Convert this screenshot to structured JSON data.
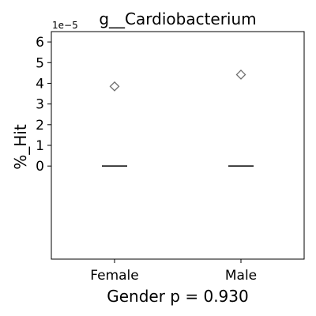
{
  "chart_data": {
    "type": "box",
    "title": "g__Cardiobacterium",
    "xlabel": "Gender p = 0.930",
    "ylabel": "%_Hit",
    "y_scale_label": "1e−5",
    "ylim": [
      -4.5e-05,
      6.5e-05
    ],
    "yticks": [
      0,
      1e-05,
      2e-05,
      3e-05,
      4e-05,
      5e-05,
      6e-05
    ],
    "ytick_labels": [
      "0",
      "1",
      "2",
      "3",
      "4",
      "5",
      "6"
    ],
    "categories": [
      "Female",
      "Male"
    ],
    "medians": [
      0,
      0
    ],
    "outliers": [
      {
        "category": "Female",
        "value": 3.85e-05
      },
      {
        "category": "Male",
        "value": 4.42e-05
      }
    ],
    "grid": false,
    "legend": "none"
  }
}
